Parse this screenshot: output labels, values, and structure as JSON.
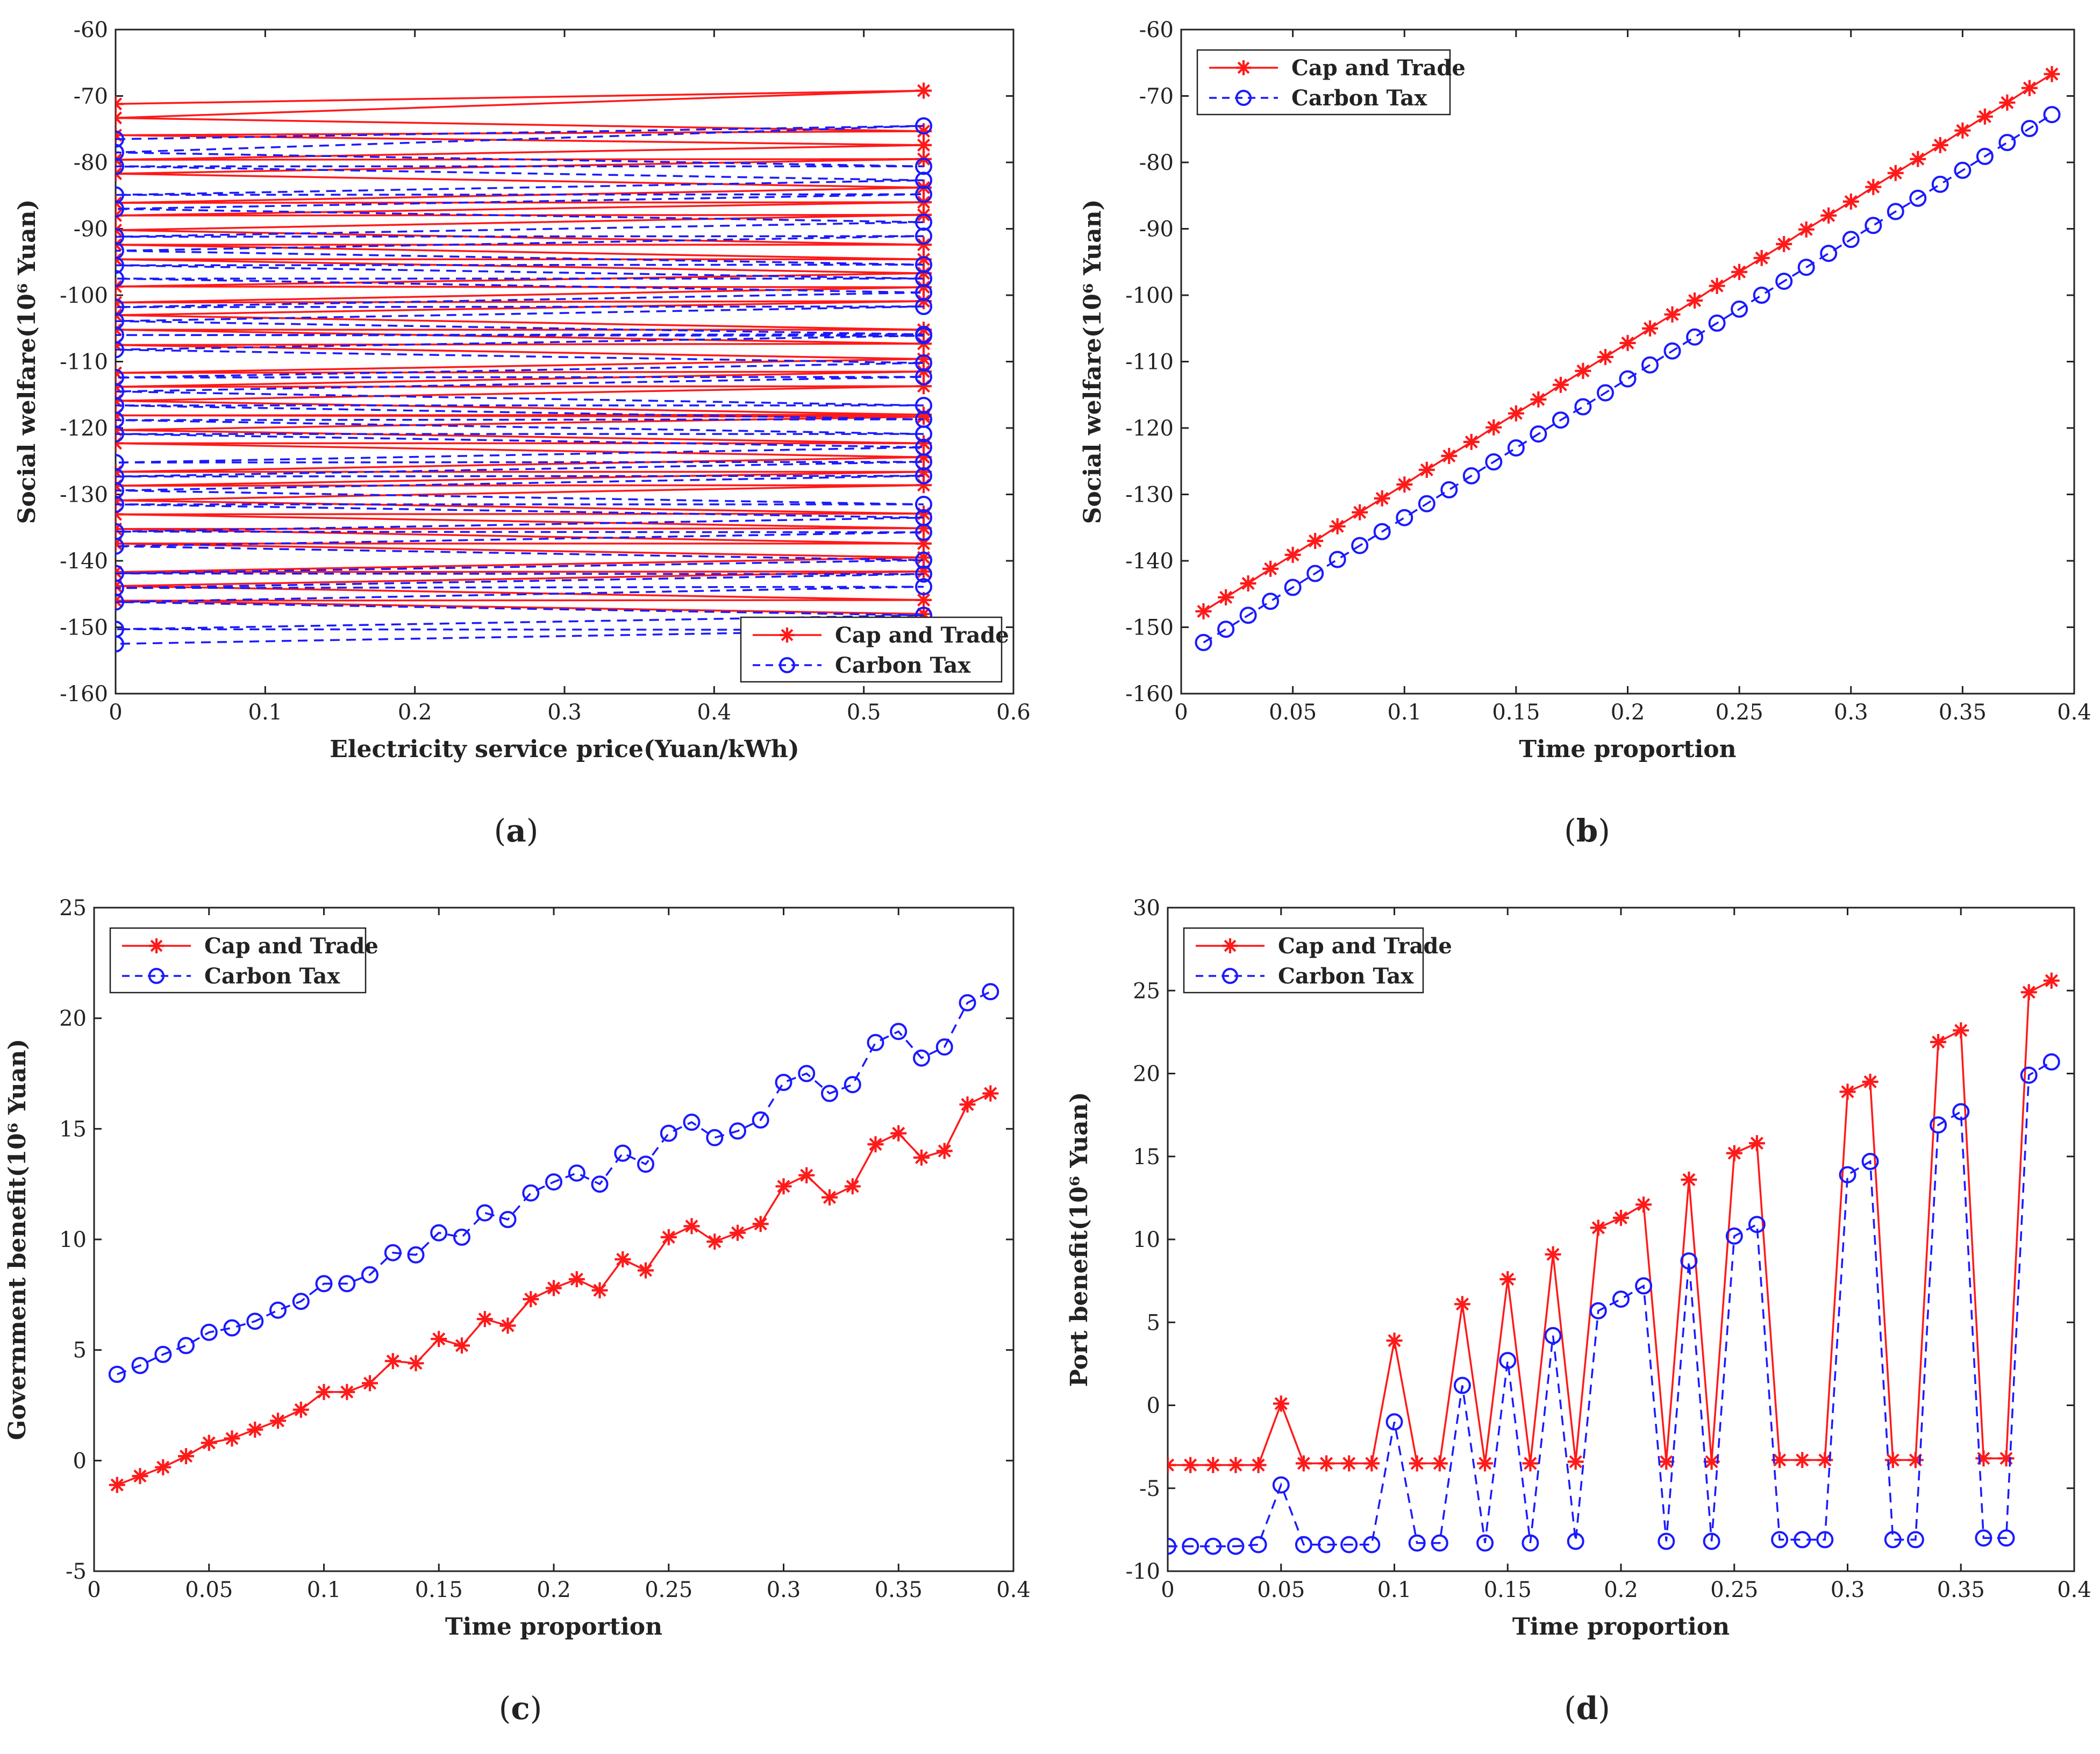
{
  "chart_data": [
    {
      "id": "a",
      "type": "line",
      "panel_label": "a",
      "xlabel": "Electricity service price(Yuan/kWh)",
      "ylabel": "Social welfare(10⁶ Yuan)",
      "xlim": [
        0,
        0.6
      ],
      "ylim": [
        -160,
        -60
      ],
      "xticks": [
        0,
        0.1,
        0.2,
        0.3,
        0.4,
        0.5,
        0.6
      ],
      "yticks": [
        -60,
        -70,
        -80,
        -90,
        -100,
        -110,
        -120,
        -130,
        -140,
        -150,
        -160
      ],
      "xtick_labels": [
        "0",
        "0.1",
        "0.2",
        "0.3",
        "0.4",
        "0.5",
        "0.6"
      ],
      "ytick_labels": [
        "-60",
        "-70",
        "-80",
        "-90",
        "-100",
        "-110",
        "-120",
        "-130",
        "-140",
        "-150",
        "-160"
      ],
      "legend_position": "bottom-right",
      "series": [
        {
          "name": "Cap and Trade",
          "color": "#ff1a1a",
          "style": "solid",
          "marker": "star",
          "points": [
            [
              0,
              -71.2
            ],
            [
              0.54,
              -69.2
            ],
            [
              0,
              -73.3
            ],
            [
              0.54,
              -75.3
            ],
            [
              0,
              -75.9
            ],
            [
              0.54,
              -77.4
            ],
            [
              0,
              -79.6
            ],
            [
              0.54,
              -79.5
            ],
            [
              0,
              -81.7
            ],
            [
              0.54,
              -83.8
            ],
            [
              0,
              -86.1
            ],
            [
              0.54,
              -86.0
            ],
            [
              0,
              -88.0
            ],
            [
              0.54,
              -87.9
            ],
            [
              0,
              -90.2
            ],
            [
              0.54,
              -92.4
            ],
            [
              0,
              -92.4
            ],
            [
              0.54,
              -94.6
            ],
            [
              0,
              -94.6
            ],
            [
              0.54,
              -96.7
            ],
            [
              0,
              -98.7
            ],
            [
              0.54,
              -98.8
            ],
            [
              0,
              -101.1
            ],
            [
              0.54,
              -100.9
            ],
            [
              0,
              -103.0
            ],
            [
              0.54,
              -105.2
            ],
            [
              0,
              -105.2
            ],
            [
              0.54,
              -107.3
            ],
            [
              0,
              -107.5
            ],
            [
              0.54,
              -109.6
            ],
            [
              0,
              -111.7
            ],
            [
              0.54,
              -111.5
            ],
            [
              0,
              -113.8
            ],
            [
              0.54,
              -113.7
            ],
            [
              0,
              -115.9
            ],
            [
              0.54,
              -118.0
            ],
            [
              0,
              -118.1
            ],
            [
              0.54,
              -118.3
            ],
            [
              0,
              -120.3
            ],
            [
              0.54,
              -122.3
            ],
            [
              0,
              -122.3
            ],
            [
              0.54,
              -124.4
            ],
            [
              0,
              -126.6
            ],
            [
              0.54,
              -126.6
            ],
            [
              0,
              -128.7
            ],
            [
              0.54,
              -128.6
            ],
            [
              0,
              -130.9
            ],
            [
              0.54,
              -132.9
            ],
            [
              0,
              -133.0
            ],
            [
              0.54,
              -135.1
            ],
            [
              0,
              -135.2
            ],
            [
              0.54,
              -137.4
            ],
            [
              0,
              -137.4
            ],
            [
              0.54,
              -139.5
            ],
            [
              0,
              -141.7
            ],
            [
              0.54,
              -141.6
            ],
            [
              0,
              -143.8
            ],
            [
              0.54,
              -145.9
            ],
            [
              0,
              -146.0
            ],
            [
              0.54,
              -148.0
            ]
          ]
        },
        {
          "name": "Carbon Tax",
          "color": "#1a1aff",
          "style": "dashed",
          "marker": "circle",
          "points": [
            [
              0,
              -76.5
            ],
            [
              0.54,
              -74.5
            ],
            [
              0,
              -78.5
            ],
            [
              0.54,
              -80.6
            ],
            [
              0,
              -80.6
            ],
            [
              0.54,
              -82.7
            ],
            [
              0,
              -84.9
            ],
            [
              0.54,
              -84.8
            ],
            [
              0,
              -87.0
            ],
            [
              0.54,
              -89.0
            ],
            [
              0,
              -91.2
            ],
            [
              0.54,
              -91.1
            ],
            [
              0,
              -93.3
            ],
            [
              0.54,
              -95.4
            ],
            [
              0,
              -95.5
            ],
            [
              0.54,
              -97.5
            ],
            [
              0,
              -97.5
            ],
            [
              0.54,
              -99.6
            ],
            [
              0,
              -101.8
            ],
            [
              0.54,
              -101.7
            ],
            [
              0,
              -103.9
            ],
            [
              0.54,
              -105.9
            ],
            [
              0,
              -106.0
            ],
            [
              0.54,
              -106.1
            ],
            [
              0,
              -108.2
            ],
            [
              0.54,
              -110.2
            ],
            [
              0,
              -112.4
            ],
            [
              0.54,
              -112.3
            ],
            [
              0,
              -114.5
            ],
            [
              0.54,
              -116.6
            ],
            [
              0,
              -116.6
            ],
            [
              0.54,
              -118.7
            ],
            [
              0,
              -118.8
            ],
            [
              0.54,
              -120.9
            ],
            [
              0,
              -120.9
            ],
            [
              0.54,
              -122.9
            ],
            [
              0,
              -125.2
            ],
            [
              0.54,
              -125.1
            ],
            [
              0,
              -127.3
            ],
            [
              0.54,
              -127.2
            ],
            [
              0,
              -129.4
            ],
            [
              0.54,
              -131.5
            ],
            [
              0,
              -131.5
            ],
            [
              0.54,
              -133.5
            ],
            [
              0,
              -135.6
            ],
            [
              0.54,
              -135.7
            ],
            [
              0,
              -137.8
            ],
            [
              0.54,
              -139.9
            ],
            [
              0,
              -141.9
            ],
            [
              0.54,
              -142.0
            ],
            [
              0,
              -144.1
            ],
            [
              0.54,
              -143.9
            ],
            [
              0,
              -146.2
            ],
            [
              0.54,
              -148.2
            ],
            [
              0,
              -150.3
            ],
            [
              0.54,
              -150.4
            ],
            [
              0,
              -152.5
            ]
          ]
        }
      ]
    },
    {
      "id": "b",
      "type": "line",
      "panel_label": "b",
      "xlabel": "Time proportion",
      "ylabel": "Social welfare(10⁶ Yuan)",
      "xlim": [
        0,
        0.4
      ],
      "ylim": [
        -160,
        -60
      ],
      "xticks": [
        0,
        0.05,
        0.1,
        0.15,
        0.2,
        0.25,
        0.3,
        0.35,
        0.4
      ],
      "yticks": [
        -60,
        -70,
        -80,
        -90,
        -100,
        -110,
        -120,
        -130,
        -140,
        -150,
        -160
      ],
      "xtick_labels": [
        "0",
        "0.05",
        "0.1",
        "0.15",
        "0.2",
        "0.25",
        "0.3",
        "0.35",
        "0.4"
      ],
      "ytick_labels": [
        "-60",
        "-70",
        "-80",
        "-90",
        "-100",
        "-110",
        "-120",
        "-130",
        "-140",
        "-150",
        "-160"
      ],
      "legend_position": "top-left",
      "x": [
        0.01,
        0.02,
        0.03,
        0.04,
        0.05,
        0.06,
        0.07,
        0.08,
        0.09,
        0.1,
        0.11,
        0.12,
        0.13,
        0.14,
        0.15,
        0.16,
        0.17,
        0.18,
        0.19,
        0.2,
        0.21,
        0.22,
        0.23,
        0.24,
        0.25,
        0.26,
        0.27,
        0.28,
        0.29,
        0.3,
        0.31,
        0.32,
        0.33,
        0.34,
        0.35,
        0.36,
        0.37,
        0.38,
        0.39
      ],
      "series": [
        {
          "name": "Cap and Trade",
          "color": "#ff1a1a",
          "style": "solid",
          "marker": "star",
          "values": [
            -147.6,
            -145.5,
            -143.4,
            -141.2,
            -139.1,
            -137.0,
            -134.8,
            -132.7,
            -130.6,
            -128.5,
            -126.3,
            -124.2,
            -122.1,
            -119.9,
            -117.8,
            -115.7,
            -113.5,
            -111.4,
            -109.3,
            -107.2,
            -105.0,
            -102.9,
            -100.8,
            -98.6,
            -96.5,
            -94.4,
            -92.3,
            -90.1,
            -88.0,
            -85.9,
            -83.7,
            -81.6,
            -79.5,
            -77.4,
            -75.2,
            -73.1,
            -71.0,
            -68.8,
            -66.7
          ]
        },
        {
          "name": "Carbon Tax",
          "color": "#1a1aff",
          "style": "dashed",
          "marker": "circle",
          "values": [
            -152.3,
            -150.3,
            -148.2,
            -146.1,
            -144.0,
            -141.9,
            -139.8,
            -137.7,
            -135.6,
            -133.5,
            -131.4,
            -129.3,
            -127.2,
            -125.1,
            -123.0,
            -120.9,
            -118.8,
            -116.8,
            -114.7,
            -112.6,
            -110.5,
            -108.4,
            -106.3,
            -104.2,
            -102.1,
            -100.0,
            -97.9,
            -95.8,
            -93.7,
            -91.6,
            -89.5,
            -87.4,
            -85.4,
            -83.3,
            -81.2,
            -79.1,
            -77.0,
            -74.9,
            -72.8
          ]
        }
      ]
    },
    {
      "id": "c",
      "type": "line",
      "panel_label": "c",
      "xlabel": "Time proportion",
      "ylabel": "Government benefit(10⁶ Yuan)",
      "xlim": [
        0,
        0.4
      ],
      "ylim": [
        -5,
        25
      ],
      "xticks": [
        0,
        0.05,
        0.1,
        0.15,
        0.2,
        0.25,
        0.3,
        0.35,
        0.4
      ],
      "yticks": [
        -5,
        0,
        5,
        10,
        15,
        20,
        25
      ],
      "xtick_labels": [
        "0",
        "0.05",
        "0.1",
        "0.15",
        "0.2",
        "0.25",
        "0.3",
        "0.35",
        "0.4"
      ],
      "ytick_labels": [
        "-5",
        "0",
        "5",
        "10",
        "15",
        "20",
        "25"
      ],
      "legend_position": "top-left",
      "x": [
        0.01,
        0.02,
        0.03,
        0.04,
        0.05,
        0.06,
        0.07,
        0.08,
        0.09,
        0.1,
        0.11,
        0.12,
        0.13,
        0.14,
        0.15,
        0.16,
        0.17,
        0.18,
        0.19,
        0.2,
        0.21,
        0.22,
        0.23,
        0.24,
        0.25,
        0.26,
        0.27,
        0.28,
        0.29,
        0.3,
        0.31,
        0.32,
        0.33,
        0.34,
        0.35,
        0.36,
        0.37,
        0.38,
        0.39
      ],
      "series": [
        {
          "name": "Cap and Trade",
          "color": "#ff1a1a",
          "style": "solid",
          "marker": "star",
          "values": [
            -1.1,
            -0.7,
            -0.3,
            0.2,
            0.8,
            1.0,
            1.4,
            1.8,
            2.3,
            3.1,
            3.1,
            3.5,
            4.5,
            4.4,
            5.5,
            5.2,
            6.4,
            6.1,
            7.3,
            7.8,
            8.2,
            7.7,
            9.1,
            8.6,
            10.1,
            10.6,
            9.9,
            10.3,
            10.7,
            12.4,
            12.9,
            11.9,
            12.4,
            14.3,
            14.8,
            13.7,
            14.0,
            16.1,
            16.6
          ]
        },
        {
          "name": "Carbon Tax",
          "color": "#1a1aff",
          "style": "dashed",
          "marker": "circle",
          "values": [
            3.9,
            4.3,
            4.8,
            5.2,
            5.8,
            6.0,
            6.3,
            6.8,
            7.2,
            8.0,
            8.0,
            8.4,
            9.4,
            9.3,
            10.3,
            10.1,
            11.2,
            10.9,
            12.1,
            12.6,
            13.0,
            12.5,
            13.9,
            13.4,
            14.8,
            15.3,
            14.6,
            14.9,
            15.4,
            17.1,
            17.5,
            16.6,
            17.0,
            18.9,
            19.4,
            18.2,
            18.7,
            20.7,
            21.2
          ]
        }
      ]
    },
    {
      "id": "d",
      "type": "line",
      "panel_label": "d",
      "xlabel": "Time proportion",
      "ylabel": "Port benefit(10⁶ Yuan)",
      "xlim": [
        0,
        0.4
      ],
      "ylim": [
        -10,
        30
      ],
      "xticks": [
        0,
        0.05,
        0.1,
        0.15,
        0.2,
        0.25,
        0.3,
        0.35,
        0.4
      ],
      "yticks": [
        -10,
        -5,
        0,
        5,
        10,
        15,
        20,
        25,
        30
      ],
      "xtick_labels": [
        "0",
        "0.05",
        "0.1",
        "0.15",
        "0.2",
        "0.25",
        "0.3",
        "0.35",
        "0.4"
      ],
      "ytick_labels": [
        "-10",
        "-5",
        "0",
        "5",
        "10",
        "15",
        "20",
        "25",
        "30"
      ],
      "legend_position": "top-left",
      "x": [
        0,
        0.01,
        0.02,
        0.03,
        0.04,
        0.05,
        0.06,
        0.07,
        0.08,
        0.09,
        0.1,
        0.11,
        0.12,
        0.13,
        0.14,
        0.15,
        0.16,
        0.17,
        0.18,
        0.19,
        0.2,
        0.21,
        0.22,
        0.23,
        0.24,
        0.25,
        0.26,
        0.27,
        0.28,
        0.29,
        0.3,
        0.31,
        0.32,
        0.33,
        0.34,
        0.35,
        0.36,
        0.37,
        0.38,
        0.39
      ],
      "series": [
        {
          "name": "Cap and Trade",
          "color": "#ff1a1a",
          "style": "solid",
          "marker": "star",
          "values": [
            -3.6,
            -3.6,
            -3.6,
            -3.6,
            -3.6,
            0.1,
            -3.5,
            -3.5,
            -3.5,
            -3.5,
            3.9,
            -3.5,
            -3.5,
            6.1,
            -3.5,
            7.6,
            -3.5,
            9.1,
            -3.4,
            10.7,
            11.3,
            12.1,
            -3.4,
            13.6,
            -3.4,
            15.2,
            15.8,
            -3.3,
            -3.3,
            -3.3,
            18.9,
            19.5,
            -3.3,
            -3.3,
            21.9,
            22.6,
            -3.2,
            -3.2,
            24.9,
            25.6
          ]
        },
        {
          "name": "Carbon Tax",
          "color": "#1a1aff",
          "style": "dashed",
          "marker": "circle",
          "values": [
            -8.5,
            -8.5,
            -8.5,
            -8.5,
            -8.4,
            -4.8,
            -8.4,
            -8.4,
            -8.4,
            -8.4,
            -1.0,
            -8.3,
            -8.3,
            1.2,
            -8.3,
            2.7,
            -8.3,
            4.2,
            -8.2,
            5.7,
            6.4,
            7.2,
            -8.2,
            8.7,
            -8.2,
            10.2,
            10.9,
            -8.1,
            -8.1,
            -8.1,
            13.9,
            14.7,
            -8.1,
            -8.1,
            16.9,
            17.7,
            -8.0,
            -8.0,
            19.9,
            20.7
          ]
        }
      ]
    }
  ]
}
